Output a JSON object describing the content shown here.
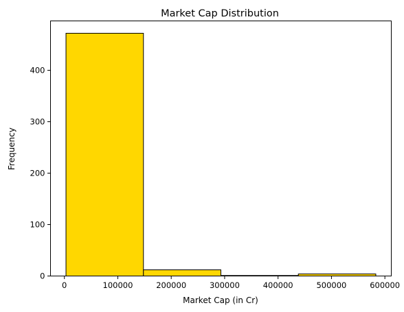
{
  "chart_data": {
    "type": "bar",
    "title": "Market Cap Distribution",
    "xlabel": "Market Cap (in Cr)",
    "ylabel": "Frequency",
    "bins": [
      {
        "start": 3000,
        "end": 148000,
        "count": 472
      },
      {
        "start": 148000,
        "end": 293000,
        "count": 12
      },
      {
        "start": 293000,
        "end": 438000,
        "count": 1
      },
      {
        "start": 438000,
        "end": 583000,
        "count": 4
      }
    ],
    "xlim": [
      -26000,
      612000
    ],
    "ylim": [
      0,
      496
    ],
    "xticks": [
      0,
      100000,
      200000,
      300000,
      400000,
      500000,
      600000
    ],
    "yticks": [
      0,
      100,
      200,
      300,
      400
    ],
    "bar_color": "#ffd700",
    "edge_color": "#000000",
    "grid": false
  }
}
